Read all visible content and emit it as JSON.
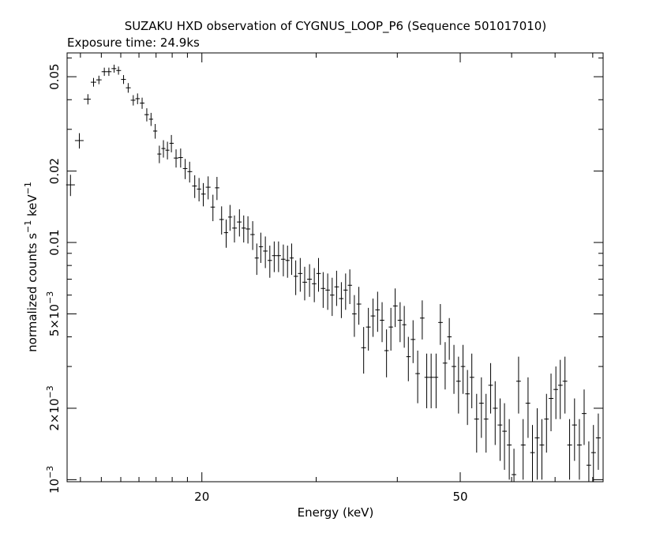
{
  "chart_data": {
    "type": "scatter",
    "title": "SUZAKU HXD observation of CYGNUS_LOOP_P6 (Sequence 501017010)",
    "subtitle": "Exposure time: 24.9ks",
    "xlabel": "Energy (keV)",
    "ylabel": {
      "prefix": "normalized counts s",
      "exp1": "−1",
      "mid": " keV",
      "exp2": "−1"
    },
    "x_scale": "log",
    "y_scale": "log",
    "xlim": [
      12.4,
      83
    ],
    "ylim": [
      0.00098,
      0.063
    ],
    "x_ticks": [
      {
        "value": 20,
        "label": "20"
      },
      {
        "value": 50,
        "label": "50"
      }
    ],
    "x_minor_ticks": [
      13,
      14,
      15,
      16,
      17,
      18,
      19,
      30,
      40,
      60,
      70,
      80
    ],
    "y_ticks": [
      {
        "value": 0.001,
        "mant": "10",
        "exp": "−3"
      },
      {
        "value": 0.002,
        "mant": "2×10",
        "exp": "−3"
      },
      {
        "value": 0.005,
        "mant": "5×10",
        "exp": "−3"
      },
      {
        "value": 0.01,
        "mant": "0.01",
        "exp": ""
      },
      {
        "value": 0.02,
        "mant": "0.02",
        "exp": ""
      },
      {
        "value": 0.05,
        "mant": "0.05",
        "exp": ""
      }
    ],
    "y_minor_ticks": [
      0.003,
      0.004,
      0.006,
      0.007,
      0.008,
      0.009,
      0.03,
      0.04,
      0.06
    ],
    "grid": false,
    "legend": "none",
    "points": [
      [
        12.55,
        0.0175,
        0.0018
      ],
      [
        12.95,
        0.0269,
        0.002
      ],
      [
        13.35,
        0.0402,
        0.002
      ],
      [
        13.62,
        0.0474,
        0.002
      ],
      [
        13.88,
        0.0485,
        0.002
      ],
      [
        14.15,
        0.0525,
        0.0021
      ],
      [
        14.38,
        0.0525,
        0.0021
      ],
      [
        14.65,
        0.0541,
        0.0021
      ],
      [
        14.88,
        0.0531,
        0.0021
      ],
      [
        15.15,
        0.0487,
        0.0021
      ],
      [
        15.4,
        0.0449,
        0.0021
      ],
      [
        15.68,
        0.0398,
        0.002
      ],
      [
        15.92,
        0.0404,
        0.0021
      ],
      [
        16.18,
        0.0387,
        0.0021
      ],
      [
        16.45,
        0.0346,
        0.0022
      ],
      [
        16.7,
        0.0331,
        0.0021
      ],
      [
        16.95,
        0.0295,
        0.0021
      ],
      [
        17.2,
        0.0236,
        0.002
      ],
      [
        17.45,
        0.0249,
        0.0021
      ],
      [
        17.7,
        0.0245,
        0.0021
      ],
      [
        17.95,
        0.0262,
        0.0022
      ],
      [
        18.25,
        0.0227,
        0.002
      ],
      [
        18.55,
        0.0228,
        0.0021
      ],
      [
        18.85,
        0.0205,
        0.002
      ],
      [
        19.15,
        0.0199,
        0.002
      ],
      [
        19.5,
        0.0173,
        0.0019
      ],
      [
        19.8,
        0.0168,
        0.0019
      ],
      [
        20.1,
        0.016,
        0.0018
      ],
      [
        20.45,
        0.0171,
        0.0019
      ],
      [
        20.8,
        0.0141,
        0.0018
      ],
      [
        21.1,
        0.017,
        0.0019
      ],
      [
        21.45,
        0.0125,
        0.0017
      ],
      [
        21.8,
        0.011,
        0.0015
      ],
      [
        22.1,
        0.0128,
        0.0016
      ],
      [
        22.45,
        0.0115,
        0.0015
      ],
      [
        22.85,
        0.0122,
        0.0016
      ],
      [
        23.2,
        0.0115,
        0.0015
      ],
      [
        23.55,
        0.0114,
        0.0015
      ],
      [
        23.95,
        0.0108,
        0.0015
      ],
      [
        24.3,
        0.0086,
        0.0013
      ],
      [
        24.65,
        0.0096,
        0.0014
      ],
      [
        25.05,
        0.0092,
        0.0014
      ],
      [
        25.45,
        0.0084,
        0.0013
      ],
      [
        25.85,
        0.0088,
        0.0013
      ],
      [
        26.25,
        0.0088,
        0.0013
      ],
      [
        26.7,
        0.0085,
        0.0013
      ],
      [
        27.1,
        0.0084,
        0.0013
      ],
      [
        27.5,
        0.0086,
        0.0013
      ],
      [
        27.9,
        0.0072,
        0.0012
      ],
      [
        28.35,
        0.0074,
        0.0012
      ],
      [
        28.8,
        0.0068,
        0.0011
      ],
      [
        29.3,
        0.007,
        0.0011
      ],
      [
        29.8,
        0.0067,
        0.0011
      ],
      [
        30.25,
        0.0074,
        0.0012
      ],
      [
        30.75,
        0.0064,
        0.0011
      ],
      [
        31.25,
        0.0063,
        0.0011
      ],
      [
        31.75,
        0.006,
        0.0011
      ],
      [
        32.25,
        0.0065,
        0.0011
      ],
      [
        32.8,
        0.0058,
        0.001
      ],
      [
        33.3,
        0.0063,
        0.0011
      ],
      [
        33.8,
        0.0066,
        0.0011
      ],
      [
        34.35,
        0.005,
        0.001
      ],
      [
        34.9,
        0.0055,
        0.001
      ],
      [
        35.5,
        0.0036,
        0.0008
      ],
      [
        36.1,
        0.0044,
        0.0009
      ],
      [
        36.7,
        0.0049,
        0.0009
      ],
      [
        37.3,
        0.0052,
        0.001
      ],
      [
        37.9,
        0.0047,
        0.0009
      ],
      [
        38.5,
        0.0035,
        0.0008
      ],
      [
        39.1,
        0.0044,
        0.0009
      ],
      [
        39.7,
        0.0054,
        0.001
      ],
      [
        40.4,
        0.0047,
        0.0009
      ],
      [
        41.0,
        0.0045,
        0.0009
      ],
      [
        41.6,
        0.0033,
        0.0007
      ],
      [
        42.3,
        0.0039,
        0.0008
      ],
      [
        43.0,
        0.0028,
        0.0007
      ],
      [
        43.7,
        0.0048,
        0.0009
      ],
      [
        44.4,
        0.0027,
        0.0007
      ],
      [
        45.1,
        0.0027,
        0.0007
      ],
      [
        45.9,
        0.0027,
        0.0007
      ],
      [
        46.6,
        0.0046,
        0.0009
      ],
      [
        47.4,
        0.0031,
        0.0007
      ],
      [
        48.1,
        0.004,
        0.0008
      ],
      [
        48.9,
        0.003,
        0.0007
      ],
      [
        49.7,
        0.0026,
        0.0007
      ],
      [
        50.5,
        0.003,
        0.0007
      ],
      [
        51.3,
        0.0023,
        0.0006
      ],
      [
        52.1,
        0.0027,
        0.0007
      ],
      [
        53.0,
        0.0018,
        0.0005
      ],
      [
        53.9,
        0.0021,
        0.0006
      ],
      [
        54.8,
        0.0018,
        0.0005
      ],
      [
        55.7,
        0.0025,
        0.0006
      ],
      [
        56.6,
        0.002,
        0.0006
      ],
      [
        57.6,
        0.0017,
        0.0005
      ],
      [
        58.5,
        0.0016,
        0.0005
      ],
      [
        59.5,
        0.0014,
        0.0004
      ],
      [
        60.5,
        0.00105,
        0.0003
      ],
      [
        61.5,
        0.0026,
        0.0007
      ],
      [
        62.5,
        0.0014,
        0.0004
      ],
      [
        63.6,
        0.0021,
        0.0006
      ],
      [
        64.6,
        0.0013,
        0.0004
      ],
      [
        65.7,
        0.0015,
        0.0005
      ],
      [
        66.8,
        0.0014,
        0.0004
      ],
      [
        67.9,
        0.0018,
        0.0005
      ],
      [
        69.0,
        0.0022,
        0.0006
      ],
      [
        70.2,
        0.0024,
        0.0006
      ],
      [
        71.3,
        0.0025,
        0.0007
      ],
      [
        72.5,
        0.0026,
        0.0007
      ],
      [
        73.7,
        0.0014,
        0.0004
      ],
      [
        75.0,
        0.0017,
        0.0005
      ],
      [
        76.3,
        0.0014,
        0.0004
      ],
      [
        77.6,
        0.0019,
        0.0005
      ],
      [
        78.9,
        0.00115,
        0.0003
      ],
      [
        80.2,
        0.0013,
        0.0004
      ],
      [
        81.6,
        0.0015,
        0.0004
      ]
    ]
  }
}
